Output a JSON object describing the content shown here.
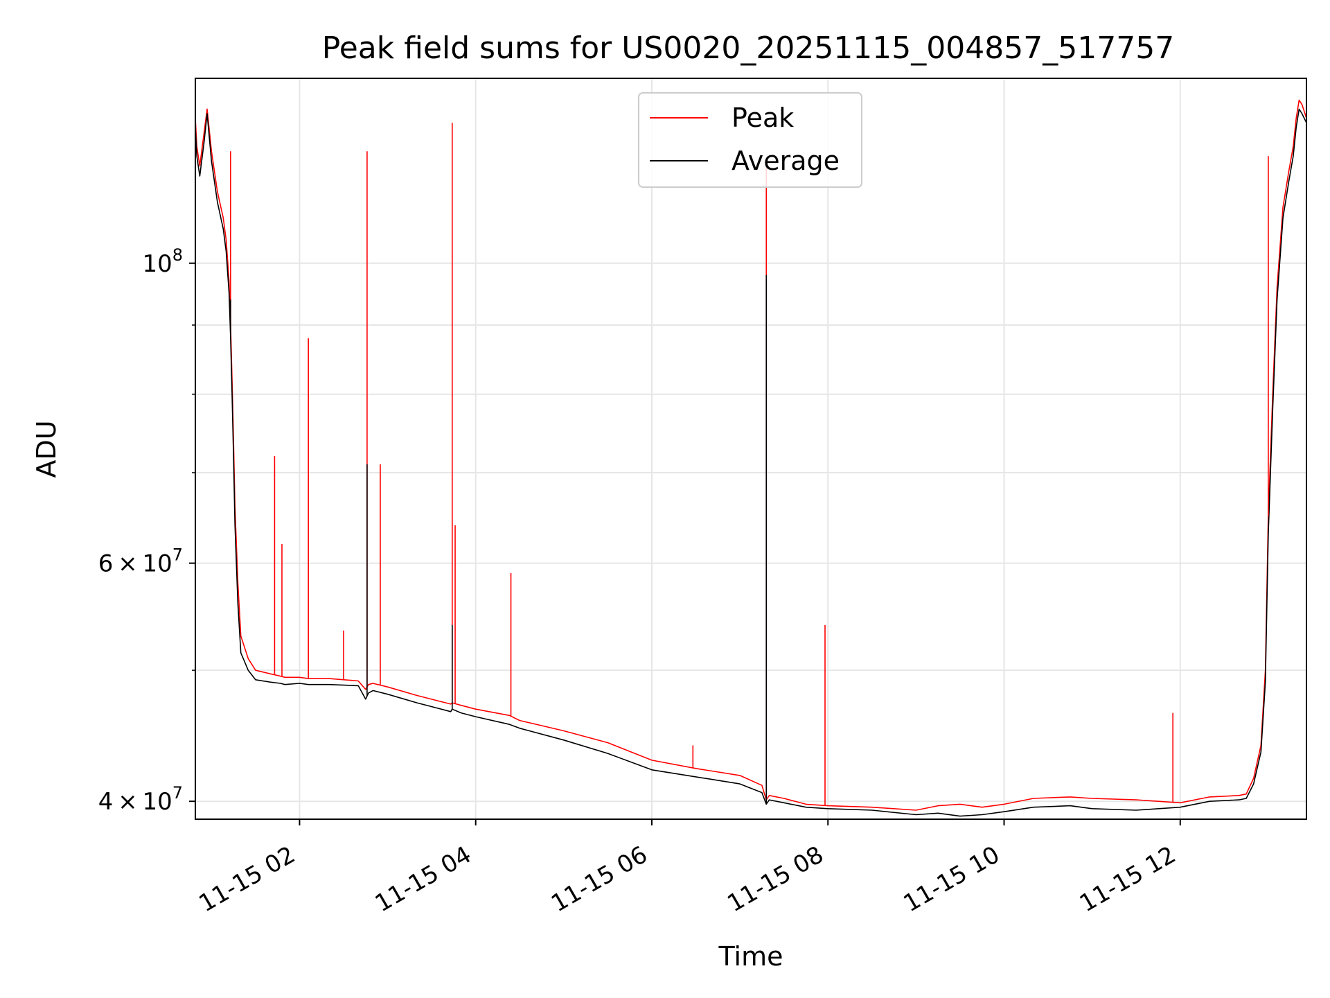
{
  "chart_data": {
    "type": "line",
    "title": "Peak field sums for US0020_20251115_004857_517757",
    "xlabel": "Time",
    "ylabel": "ADU",
    "yscale": "log",
    "xlim": [
      "2025-11-15 00:49",
      "2025-11-15 13:26"
    ],
    "ylim": [
      38800000,
      137000000
    ],
    "grid": true,
    "legend": "upper center",
    "x_ticks": [
      "2025-11-15 02:00",
      "2025-11-15 04:00",
      "2025-11-15 06:00",
      "2025-11-15 08:00",
      "2025-11-15 10:00",
      "2025-11-15 12:00"
    ],
    "x_tick_labels": [
      "11-15 02",
      "11-15 04",
      "11-15 06",
      "11-15 08",
      "11-15 10",
      "11-15 12"
    ],
    "y_ticks": [
      {
        "value": 40000000,
        "mantissa": "4",
        "exponent": "7"
      },
      {
        "value": 60000000,
        "mantissa": "6",
        "exponent": "7"
      },
      {
        "value": 100000000,
        "mantissa": "",
        "exponent": "8"
      }
    ],
    "y_minor_ticks": [
      50000000,
      70000000,
      80000000,
      90000000
    ],
    "series": [
      {
        "name": "Peak",
        "color": "#ff0000",
        "x": [
          "2025-11-15 00:49",
          "2025-11-15 00:50",
          "2025-11-15 00:52",
          "2025-11-15 00:55",
          "2025-11-15 00:57",
          "2025-11-15 01:00",
          "2025-11-15 01:04",
          "2025-11-15 01:08",
          "2025-11-15 01:10",
          "2025-11-15 01:12",
          "2025-11-15 01:13",
          "2025-11-15 01:14",
          "2025-11-15 01:15",
          "2025-11-15 01:16",
          "2025-11-15 01:18",
          "2025-11-15 01:20",
          "2025-11-15 01:25",
          "2025-11-15 01:30",
          "2025-11-15 01:40",
          "2025-11-15 01:47",
          "2025-11-15 01:50",
          "2025-11-15 02:00",
          "2025-11-15 02:06",
          "2025-11-15 02:20",
          "2025-11-15 02:40",
          "2025-11-15 02:45",
          "2025-11-15 02:47",
          "2025-11-15 02:50",
          "2025-11-15 03:00",
          "2025-11-15 03:20",
          "2025-11-15 03:43",
          "2025-11-15 03:44",
          "2025-11-15 03:50",
          "2025-11-15 04:00",
          "2025-11-15 04:23",
          "2025-11-15 04:30",
          "2025-11-15 05:00",
          "2025-11-15 05:30",
          "2025-11-15 06:00",
          "2025-11-15 06:30",
          "2025-11-15 07:00",
          "2025-11-15 07:15",
          "2025-11-15 07:18",
          "2025-11-15 07:20",
          "2025-11-15 07:30",
          "2025-11-15 07:45",
          "2025-11-15 08:00",
          "2025-11-15 08:30",
          "2025-11-15 09:00",
          "2025-11-15 09:15",
          "2025-11-15 09:30",
          "2025-11-15 09:45",
          "2025-11-15 10:00",
          "2025-11-15 10:20",
          "2025-11-15 10:45",
          "2025-11-15 11:00",
          "2025-11-15 11:30",
          "2025-11-15 12:00",
          "2025-11-15 12:20",
          "2025-11-15 12:40",
          "2025-11-15 12:45",
          "2025-11-15 12:50",
          "2025-11-15 12:55",
          "2025-11-15 12:58",
          "2025-11-15 13:00",
          "2025-11-15 13:03",
          "2025-11-15 13:06",
          "2025-11-15 13:10",
          "2025-11-15 13:14",
          "2025-11-15 13:17",
          "2025-11-15 13:19",
          "2025-11-15 13:21",
          "2025-11-15 13:23",
          "2025-11-15 13:26"
        ],
        "y": [
          128000000,
          122000000,
          118000000,
          125000000,
          130000000,
          121000000,
          113000000,
          108000000,
          104000000,
          97000000,
          90000000,
          82000000,
          74000000,
          66000000,
          58000000,
          53000000,
          51000000,
          50000000,
          49700000,
          49500000,
          49400000,
          49400000,
          49300000,
          49300000,
          49100000,
          48400000,
          48800000,
          48900000,
          48600000,
          47900000,
          47200000,
          47300000,
          47100000,
          46800000,
          46300000,
          45900000,
          45100000,
          44200000,
          42900000,
          42300000,
          41800000,
          41100000,
          40100000,
          40400000,
          40200000,
          39800000,
          39700000,
          39600000,
          39400000,
          39700000,
          39800000,
          39600000,
          39800000,
          40200000,
          40300000,
          40200000,
          40100000,
          39900000,
          40300000,
          40400000,
          40500000,
          41600000,
          44000000,
          50000000,
          65000000,
          80000000,
          96000000,
          110000000,
          117000000,
          122000000,
          128000000,
          132000000,
          131000000,
          128000000
        ]
      },
      {
        "name": "Average",
        "color": "#000000",
        "x": [
          "2025-11-15 00:49",
          "2025-11-15 00:50",
          "2025-11-15 00:52",
          "2025-11-15 00:55",
          "2025-11-15 00:57",
          "2025-11-15 01:00",
          "2025-11-15 01:04",
          "2025-11-15 01:08",
          "2025-11-15 01:10",
          "2025-11-15 01:12",
          "2025-11-15 01:13",
          "2025-11-15 01:14",
          "2025-11-15 01:15",
          "2025-11-15 01:16",
          "2025-11-15 01:18",
          "2025-11-15 01:20",
          "2025-11-15 01:25",
          "2025-11-15 01:30",
          "2025-11-15 01:40",
          "2025-11-15 01:47",
          "2025-11-15 01:50",
          "2025-11-15 02:00",
          "2025-11-15 02:06",
          "2025-11-15 02:20",
          "2025-11-15 02:40",
          "2025-11-15 02:45",
          "2025-11-15 02:47",
          "2025-11-15 02:50",
          "2025-11-15 03:00",
          "2025-11-15 03:20",
          "2025-11-15 03:43",
          "2025-11-15 03:44",
          "2025-11-15 03:50",
          "2025-11-15 04:00",
          "2025-11-15 04:23",
          "2025-11-15 04:30",
          "2025-11-15 05:00",
          "2025-11-15 05:30",
          "2025-11-15 06:00",
          "2025-11-15 06:30",
          "2025-11-15 07:00",
          "2025-11-15 07:15",
          "2025-11-15 07:18",
          "2025-11-15 07:20",
          "2025-11-15 07:30",
          "2025-11-15 07:45",
          "2025-11-15 08:00",
          "2025-11-15 08:30",
          "2025-11-15 09:00",
          "2025-11-15 09:15",
          "2025-11-15 09:30",
          "2025-11-15 09:45",
          "2025-11-15 10:00",
          "2025-11-15 10:20",
          "2025-11-15 10:45",
          "2025-11-15 11:00",
          "2025-11-15 11:30",
          "2025-11-15 12:00",
          "2025-11-15 12:20",
          "2025-11-15 12:40",
          "2025-11-15 12:45",
          "2025-11-15 12:50",
          "2025-11-15 12:55",
          "2025-11-15 12:58",
          "2025-11-15 13:00",
          "2025-11-15 13:03",
          "2025-11-15 13:06",
          "2025-11-15 13:10",
          "2025-11-15 13:14",
          "2025-11-15 13:17",
          "2025-11-15 13:19",
          "2025-11-15 13:21",
          "2025-11-15 13:23",
          "2025-11-15 13:26"
        ],
        "y": [
          126000000,
          120000000,
          116000000,
          123000000,
          129000000,
          119000000,
          111000000,
          106000000,
          102000000,
          95000000,
          88000000,
          80000000,
          72000000,
          64000000,
          56000000,
          51500000,
          50000000,
          49200000,
          49000000,
          48900000,
          48800000,
          48900000,
          48800000,
          48800000,
          48700000,
          47600000,
          48100000,
          48300000,
          48000000,
          47300000,
          46600000,
          46800000,
          46500000,
          46200000,
          45600000,
          45300000,
          44400000,
          43400000,
          42200000,
          41700000,
          41200000,
          40600000,
          39800000,
          40100000,
          39900000,
          39600000,
          39500000,
          39400000,
          39100000,
          39200000,
          39000000,
          39100000,
          39300000,
          39600000,
          39700000,
          39500000,
          39400000,
          39600000,
          40000000,
          40100000,
          40200000,
          41200000,
          43500000,
          49000000,
          63000000,
          78000000,
          94000000,
          108000000,
          115000000,
          120000000,
          126000000,
          130000000,
          129000000,
          127000000
        ]
      }
    ],
    "spikes": [
      {
        "series": "Peak",
        "x": "2025-11-15 01:13",
        "y": 121000000
      },
      {
        "series": "Peak",
        "x": "2025-11-15 01:43",
        "y": 72000000
      },
      {
        "series": "Peak",
        "x": "2025-11-15 01:48",
        "y": 62000000
      },
      {
        "series": "Peak",
        "x": "2025-11-15 02:06",
        "y": 88000000
      },
      {
        "series": "Peak",
        "x": "2025-11-15 02:30",
        "y": 53500000
      },
      {
        "series": "Peak",
        "x": "2025-11-15 02:46",
        "y": 121000000
      },
      {
        "series": "Peak",
        "x": "2025-11-15 02:55",
        "y": 71000000
      },
      {
        "series": "Peak",
        "x": "2025-11-15 03:44",
        "y": 127000000
      },
      {
        "series": "Peak",
        "x": "2025-11-15 03:46",
        "y": 64000000
      },
      {
        "series": "Peak",
        "x": "2025-11-15 04:24",
        "y": 59000000
      },
      {
        "series": "Peak",
        "x": "2025-11-15 06:28",
        "y": 44000000
      },
      {
        "series": "Peak",
        "x": "2025-11-15 07:18",
        "y": 119000000
      },
      {
        "series": "Peak",
        "x": "2025-11-15 07:58",
        "y": 54000000
      },
      {
        "series": "Peak",
        "x": "2025-11-15 11:55",
        "y": 46500000
      },
      {
        "series": "Peak",
        "x": "2025-11-15 13:00",
        "y": 120000000
      },
      {
        "series": "Average",
        "x": "2025-11-15 01:13",
        "y": 94000000
      },
      {
        "series": "Average",
        "x": "2025-11-15 02:46",
        "y": 71000000
      },
      {
        "series": "Average",
        "x": "2025-11-15 03:44",
        "y": 54000000
      },
      {
        "series": "Average",
        "x": "2025-11-15 07:18",
        "y": 98000000
      }
    ]
  }
}
